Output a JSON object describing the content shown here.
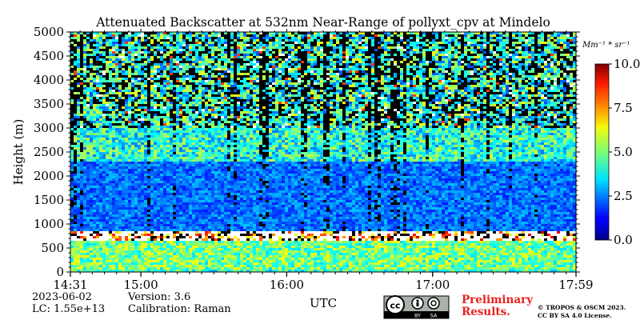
{
  "chart_data": {
    "type": "heatmap",
    "title": "Attenuated Backscatter at 532nm Near-Range of pollyxt_cpv at Mindelo",
    "ylabel": "Height (m)",
    "xlabel": "UTC",
    "x_range": [
      "14:31",
      "17:59"
    ],
    "ylim": [
      0,
      5000
    ],
    "xticks": [
      "14:31",
      "15:00",
      "16:00",
      "17:00",
      "17:59"
    ],
    "yticks": [
      "0",
      "500",
      "1000",
      "1500",
      "2000",
      "2500",
      "3000",
      "3500",
      "4000",
      "4500",
      "5000"
    ],
    "colorbar": {
      "unit": "Mm⁻¹ * sr⁻¹",
      "range": [
        0.0,
        10.0
      ],
      "ticks": [
        "0.0",
        "2.5",
        "5.0",
        "7.5",
        "10.0"
      ],
      "colormap": "jet"
    },
    "layers": {
      "cloud_base_top_m": [
        650,
        850
      ],
      "surface_layer_top_m": 650,
      "elevated_layer_top_m": 2300,
      "noise_region_above_m": 3000
    }
  },
  "meta": {
    "date": "2023-06-02",
    "lc": "LC: 1.55e+13",
    "version": "Version: 3.6",
    "calibration": "Calibration: Raman"
  },
  "license": {
    "badge_cc": "cc",
    "badge_by": "BY",
    "badge_sa": "SA",
    "preliminary_line1": "Preliminary",
    "preliminary_line2": "Results.",
    "copyright_line1": "© TROPOS & OSCM 2023.",
    "copyright_line2": "CC BY SA 4.0 License."
  }
}
